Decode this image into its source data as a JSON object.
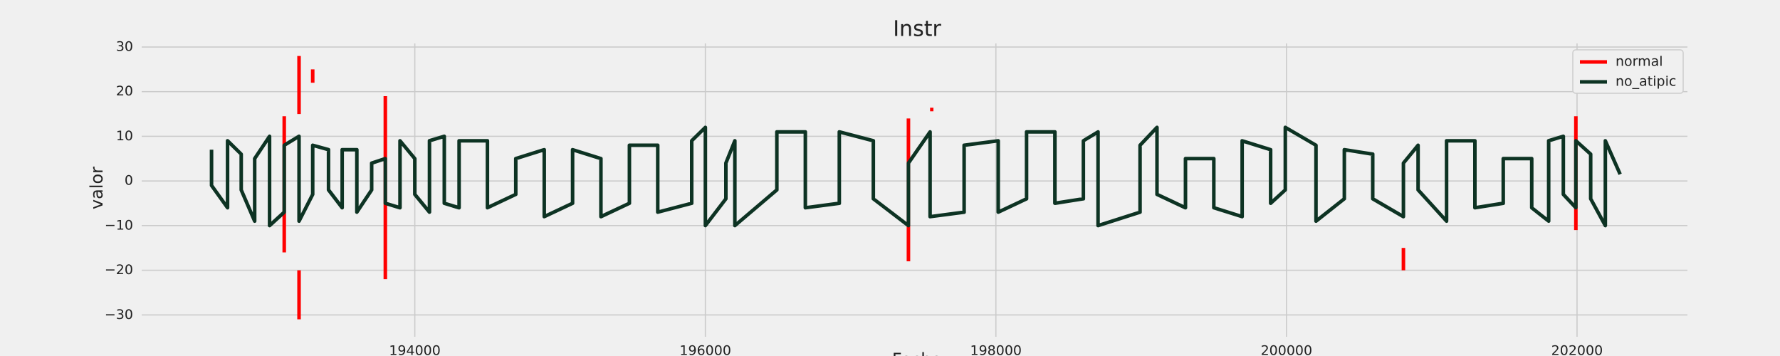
{
  "chart_data": {
    "type": "line",
    "title": "Instr",
    "xlabel": "Fecha",
    "ylabel": "valor",
    "xlim": [
      192120,
      202760
    ],
    "ylim": [
      -34.9,
      30.8
    ],
    "xticks": [
      194000,
      196000,
      198000,
      200000,
      202000
    ],
    "yticks": [
      {
        "value": -30,
        "label": "−30"
      },
      {
        "value": -20,
        "label": "−20"
      },
      {
        "value": -10,
        "label": "−10"
      },
      0,
      10,
      20,
      30
    ],
    "grid": true,
    "legend": "upper right",
    "series": [
      {
        "name": "normal",
        "color": "#ff0000",
        "x": [
          193101,
          193101,
          null,
          193203,
          193203,
          null,
          193203,
          193203,
          null,
          193297,
          193297,
          null,
          193797,
          193797,
          null,
          197398,
          197398,
          null,
          197547,
          197570,
          null,
          200805,
          200805,
          null,
          201992,
          201992
        ],
        "values": [
          14.5,
          -16,
          null,
          28,
          15,
          null,
          -20,
          -31,
          null,
          25,
          22,
          null,
          19,
          -22,
          null,
          14,
          -18,
          null,
          16,
          16,
          null,
          -15,
          -20,
          null,
          14.5,
          -11
        ]
      },
      {
        "name": "no_atipic",
        "color": "#0d3323",
        "x": [
          192601,
          192601,
          192711,
          192711,
          192805,
          192805,
          192898,
          192898,
          193000,
          193000,
          193101,
          193101,
          193203,
          193203,
          193297,
          193297,
          193406,
          193406,
          193500,
          193500,
          193601,
          193601,
          193703,
          193703,
          193797,
          193797,
          193898,
          193898,
          194000,
          194000,
          194101,
          194101,
          194203,
          194203,
          194305,
          194305,
          194500,
          194500,
          194695,
          194695,
          194891,
          194891,
          195086,
          195086,
          195281,
          195281,
          195477,
          195477,
          195672,
          195672,
          195906,
          195906,
          196000,
          196000,
          196141,
          196141,
          196203,
          196203,
          196492,
          196492,
          196688,
          196688,
          196922,
          196922,
          197156,
          197156,
          197398,
          197398,
          197547,
          197547,
          197781,
          197781,
          198016,
          198016,
          198211,
          198211,
          198406,
          198406,
          198602,
          198602,
          198703,
          198703,
          198992,
          198992,
          199109,
          199109,
          199305,
          199305,
          199500,
          199500,
          199695,
          199695,
          199891,
          199891,
          199992,
          199992,
          200203,
          200203,
          200398,
          200398,
          200594,
          200594,
          200805,
          200805,
          200906,
          200906,
          201102,
          201102,
          201297,
          201297,
          201492,
          201492,
          201688,
          201688,
          201805,
          201805,
          201906,
          201906,
          201992,
          201992,
          202094,
          202094,
          202195,
          202195,
          202297
        ],
        "values": [
          7,
          -1,
          -6,
          9,
          6,
          -2,
          -9,
          5,
          10,
          -10,
          -7,
          8,
          10,
          -9,
          -3,
          8,
          7,
          -2,
          -6,
          7,
          7,
          -7,
          -2,
          4,
          5,
          -5,
          -6,
          9,
          5,
          -3,
          -7,
          9,
          10,
          -5,
          -6,
          9,
          9,
          -6,
          -3,
          5,
          7,
          -8,
          -5,
          7,
          5,
          -8,
          -5,
          8,
          8,
          -7,
          -5,
          9,
          12,
          -10,
          -4,
          4,
          9,
          -10,
          -2,
          11,
          11,
          -6,
          -5,
          11,
          9,
          -4,
          -10,
          4,
          11,
          -8,
          -7,
          8,
          9,
          -7,
          -4,
          11,
          11,
          -5,
          -4,
          9,
          11,
          -10,
          -7,
          8,
          12,
          -3,
          -6,
          5,
          5,
          -6,
          -8,
          9,
          7,
          -5,
          -2,
          12,
          8,
          -9,
          -4,
          7,
          6,
          -4,
          -8,
          4,
          8,
          -2,
          -9,
          9,
          9,
          -6,
          -5,
          5,
          5,
          -6,
          -9,
          9,
          10,
          -3,
          -6,
          9,
          6,
          -4,
          -10,
          9,
          1.5
        ]
      }
    ]
  }
}
